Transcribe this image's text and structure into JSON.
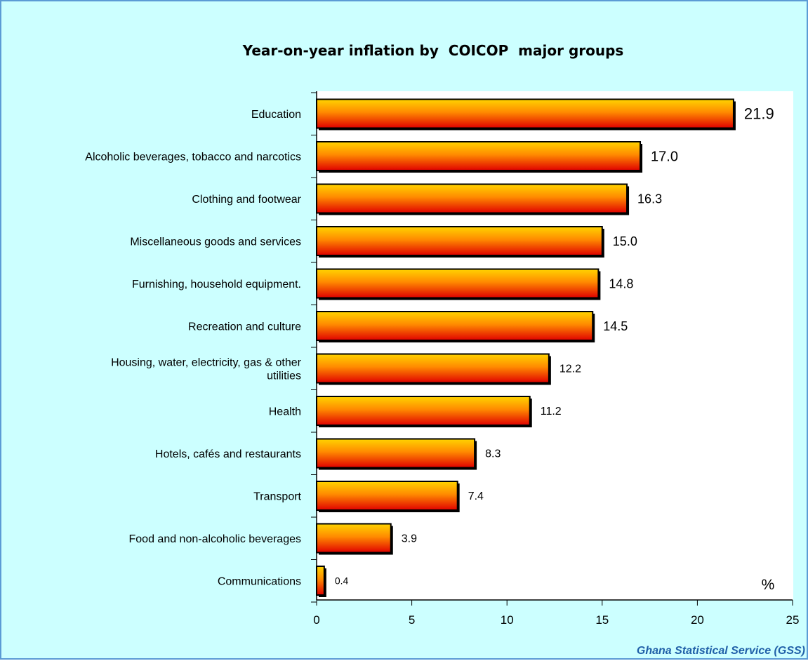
{
  "source_credit": "Ghana Statistical Service (GSS)",
  "colors": {
    "background": "#ccffff",
    "plot_background": "#ffffff",
    "bar_top": "#ffd400",
    "bar_bottom": "#e00000",
    "frame_border": "#5b9bd5",
    "credit_text": "#1f5fa8"
  },
  "chart_data": {
    "type": "bar",
    "orientation": "horizontal",
    "title": "Year-on-year inflation by  COICOP  major groups",
    "xlabel": "",
    "ylabel": "",
    "unit_label": "%",
    "categories": [
      "Education",
      "Alcoholic beverages, tobacco and narcotics",
      "Clothing and footwear",
      "Miscellaneous goods and services",
      "Furnishing, household equipment.",
      "Recreation and culture",
      "Housing, water, electricity, gas &  other utilities",
      "Health",
      "Hotels, cafés and restaurants",
      "Transport",
      "Food and non-alcoholic beverages",
      "Communications"
    ],
    "values": [
      21.9,
      17.0,
      16.3,
      15.0,
      14.8,
      14.5,
      12.2,
      11.2,
      8.3,
      7.4,
      3.9,
      0.4
    ],
    "data_labels": [
      "21.9",
      "17.0",
      "16.3",
      "15.0",
      "14.8",
      "14.5",
      "12.2",
      "11.2",
      "8.3",
      "7.4",
      "3.9",
      "0.4"
    ],
    "xlim": [
      0,
      25
    ],
    "x_ticks": [
      0,
      5,
      10,
      15,
      20,
      25
    ],
    "grid": false,
    "legend": "none"
  }
}
